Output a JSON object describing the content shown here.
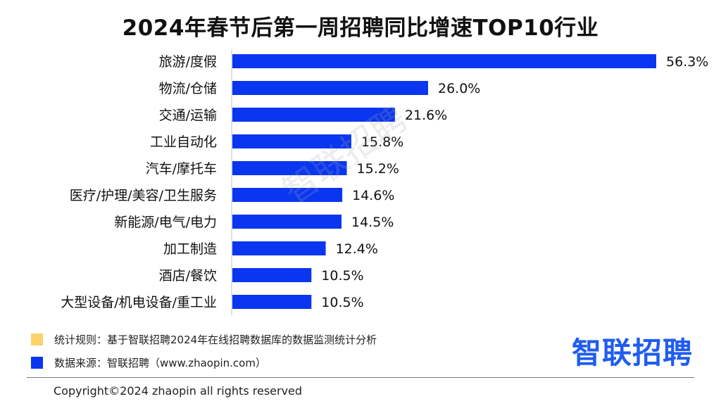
{
  "chart_data": {
    "type": "bar",
    "orientation": "horizontal",
    "title": "2024年春节后第一周招聘同比增速TOP10行业",
    "categories": [
      "旅游/度假",
      "物流/仓储",
      "交通/运输",
      "工业自动化",
      "汽车/摩托车",
      "医疗/护理/美容/卫生服务",
      "新能源/电气/电力",
      "加工制造",
      "酒店/餐饮",
      "大型设备/机电设备/重工业"
    ],
    "values": [
      56.3,
      26.0,
      21.6,
      15.8,
      15.2,
      14.6,
      14.5,
      12.4,
      10.5,
      10.5
    ],
    "value_labels": [
      "56.3%",
      "26.0%",
      "21.6%",
      "15.8%",
      "15.2%",
      "14.6%",
      "14.5%",
      "12.4%",
      "10.5%",
      "10.5%"
    ],
    "unit": "%",
    "xlim": [
      0,
      56.3
    ],
    "grid": false,
    "bar_color": "#0a36f0"
  },
  "watermark": "智联招聘",
  "legend": [
    {
      "text": "统计规则：基于智联招聘2024年在线招聘数据库的数据监测统计分析",
      "color": "#fbd26a"
    },
    {
      "text": "数据来源：智联招聘（www.zhaopin.com）",
      "color": "#0a36f0"
    }
  ],
  "brand": "智联招聘",
  "copyright": "Copyright©2024 zhaopin all rights reserved"
}
